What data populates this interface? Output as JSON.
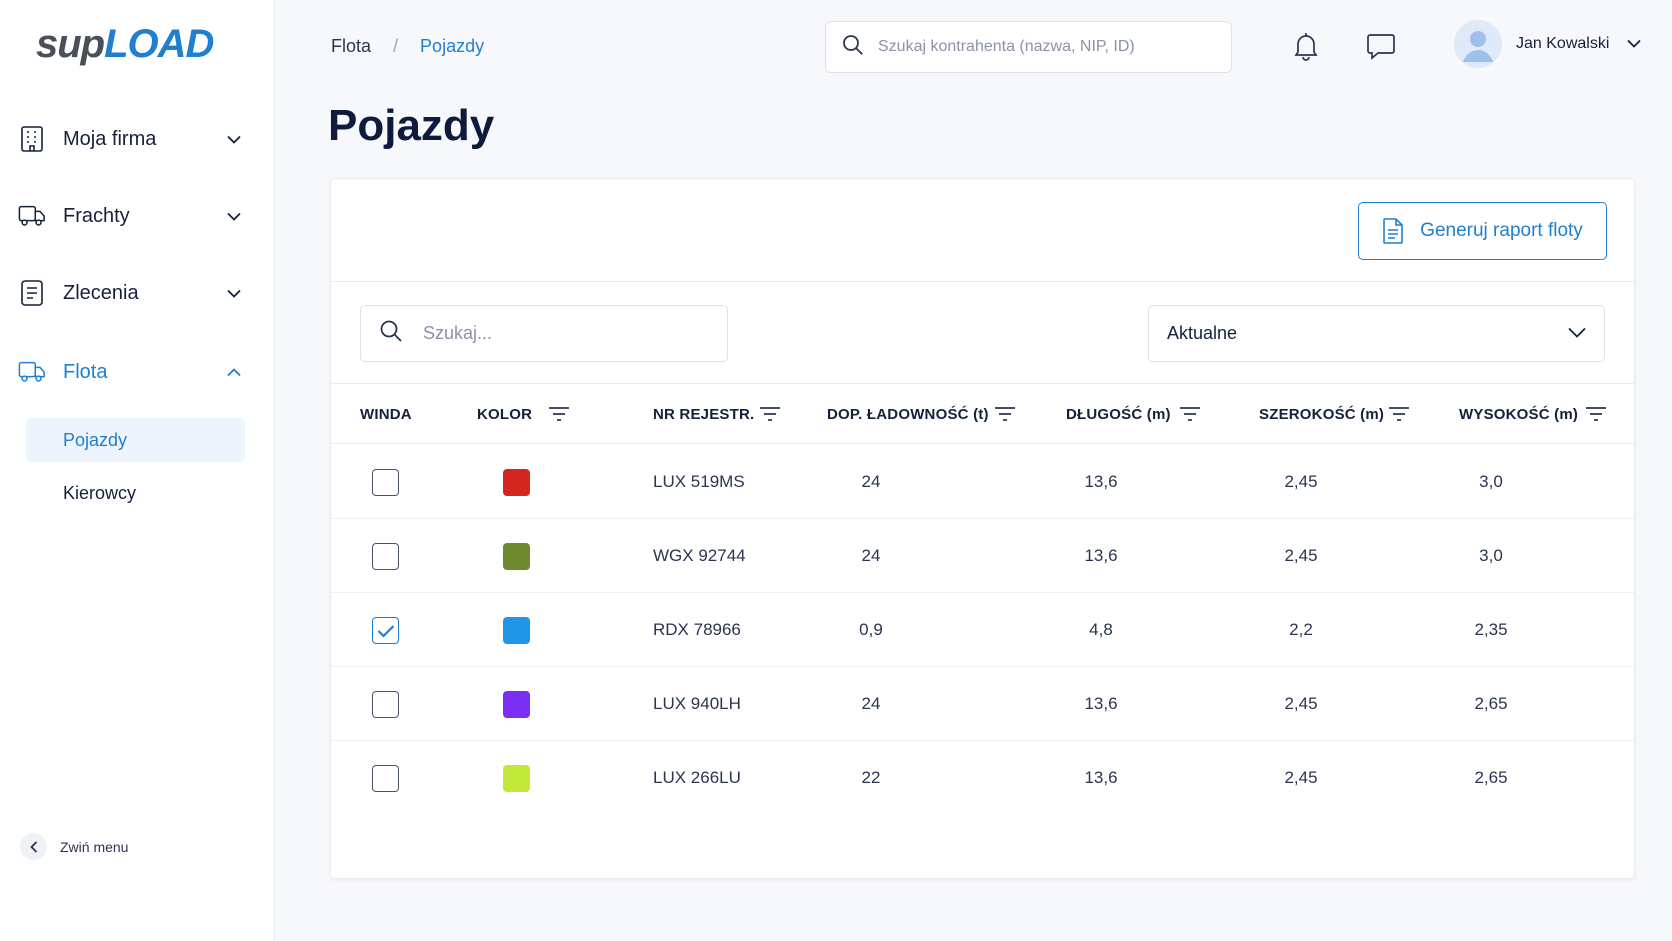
{
  "logo": {
    "part1": "sup",
    "part2": "LOAD"
  },
  "sidebar": {
    "items": [
      {
        "label": "Moja firma",
        "icon": "building-icon"
      },
      {
        "label": "Frachty",
        "icon": "truck-icon"
      },
      {
        "label": "Zlecenia",
        "icon": "document-icon"
      },
      {
        "label": "Flota",
        "icon": "fleet-truck-icon"
      }
    ],
    "subitems": [
      {
        "label": "Pojazdy",
        "selected": true
      },
      {
        "label": "Kierowcy",
        "selected": false
      }
    ],
    "collapse_label": "Zwiń menu"
  },
  "breadcrumb": {
    "parent": "Flota",
    "separator": "/",
    "current": "Pojazdy"
  },
  "header": {
    "search_placeholder": "Szukaj kontrahenta (nazwa, NIP, ID)",
    "user_name": "Jan Kowalski"
  },
  "page": {
    "title": "Pojazdy"
  },
  "toolbar": {
    "report_label": "Generuj raport floty",
    "search_placeholder": "Szukaj...",
    "filter_value": "Aktualne"
  },
  "table": {
    "headers": {
      "winda": "WINDA",
      "kolor": "KOLOR",
      "nr": "NR REJESTR.",
      "ladownosc": "DOP. ŁADOWNOŚĆ (t)",
      "dlugosc": "DŁUGOŚĆ (m)",
      "szerokosc": "SZEROKOŚĆ (m)",
      "wysokosc": "WYSOKOŚĆ (m)"
    },
    "rows": [
      {
        "winda": false,
        "color": "#d4261f",
        "nr": "LUX 519MS",
        "ladownosc": "24",
        "dlugosc": "13,6",
        "szerokosc": "2,45",
        "wysokosc": "3,0"
      },
      {
        "winda": false,
        "color": "#6f8a2e",
        "nr": "WGX 92744",
        "ladownosc": "24",
        "dlugosc": "13,6",
        "szerokosc": "2,45",
        "wysokosc": "3,0"
      },
      {
        "winda": true,
        "color": "#2196e8",
        "nr": "RDX 78966",
        "ladownosc": "0,9",
        "dlugosc": "4,8",
        "szerokosc": "2,2",
        "wysokosc": "2,35"
      },
      {
        "winda": false,
        "color": "#7b2ff2",
        "nr": "LUX 940LH",
        "ladownosc": "24",
        "dlugosc": "13,6",
        "szerokosc": "2,45",
        "wysokosc": "2,65"
      },
      {
        "winda": false,
        "color": "#c2e83a",
        "nr": "LUX 266LU",
        "ladownosc": "22",
        "dlugosc": "13,6",
        "szerokosc": "2,45",
        "wysokosc": "2,65"
      }
    ]
  },
  "colors": {
    "accent": "#1f7fd1",
    "text": "#14213d",
    "selected_bg": "#eef4fd"
  }
}
